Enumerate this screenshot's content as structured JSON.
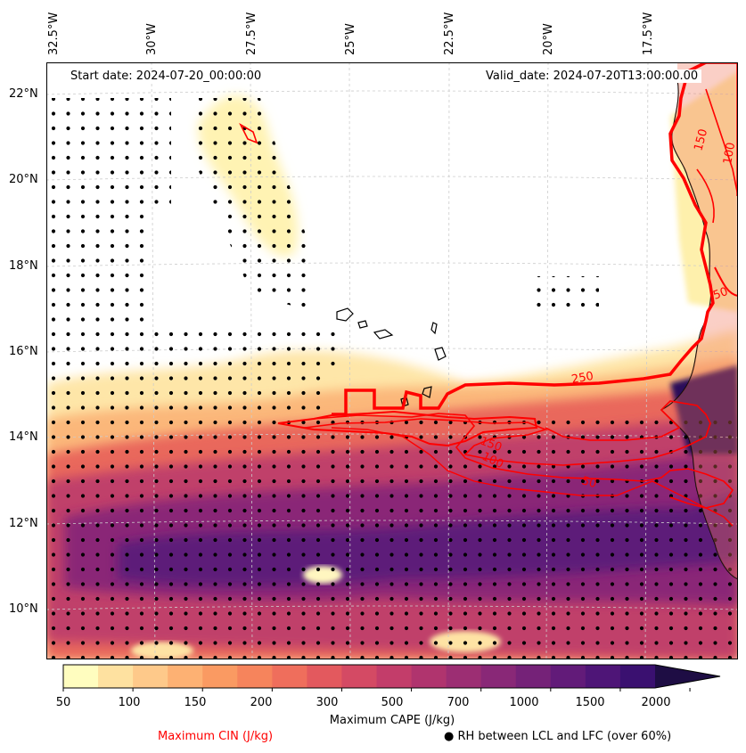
{
  "map": {
    "start_date": "Start date: 2024-07-20_00:00:00",
    "valid_date": "Valid_date: 2024-07-20T13:00:00.00",
    "lon_labels": [
      "32.5°W",
      "30°W",
      "27.5°W",
      "25°W",
      "22.5°W",
      "20°W",
      "17.5°W"
    ],
    "lat_labels": [
      "22°N",
      "20°N",
      "18°N",
      "16°N",
      "14°N",
      "12°N",
      "10°N"
    ],
    "cin_contour_labels": [
      "50",
      "100",
      "150",
      "250",
      "150",
      "100",
      "50"
    ],
    "colors": {
      "cin_contour": "#ff0000",
      "coastline": "#000000",
      "gridline": "#cccccc",
      "stipple": "#000000"
    }
  },
  "colorbar": {
    "title": "Maximum CAPE (J/kg)",
    "ticks": [
      "50",
      "100",
      "150",
      "200",
      "300",
      "500",
      "700",
      "1000",
      "1500",
      "2000"
    ],
    "colors": [
      "#fffdbf",
      "#fee1a0",
      "#fec98a",
      "#fdb173",
      "#fa9a62",
      "#f6845c",
      "#ef6e5c",
      "#e3595e",
      "#d44a64",
      "#c33d6a",
      "#b0346e",
      "#9c2e73",
      "#892877",
      "#752278",
      "#621b79",
      "#4e1577",
      "#3a1070",
      "#1e0d44"
    ]
  },
  "legend": {
    "cin_label": "Maximum CIN (J/kg)",
    "rh_label": "● RH between LCL and LFC (over 60%)"
  }
}
